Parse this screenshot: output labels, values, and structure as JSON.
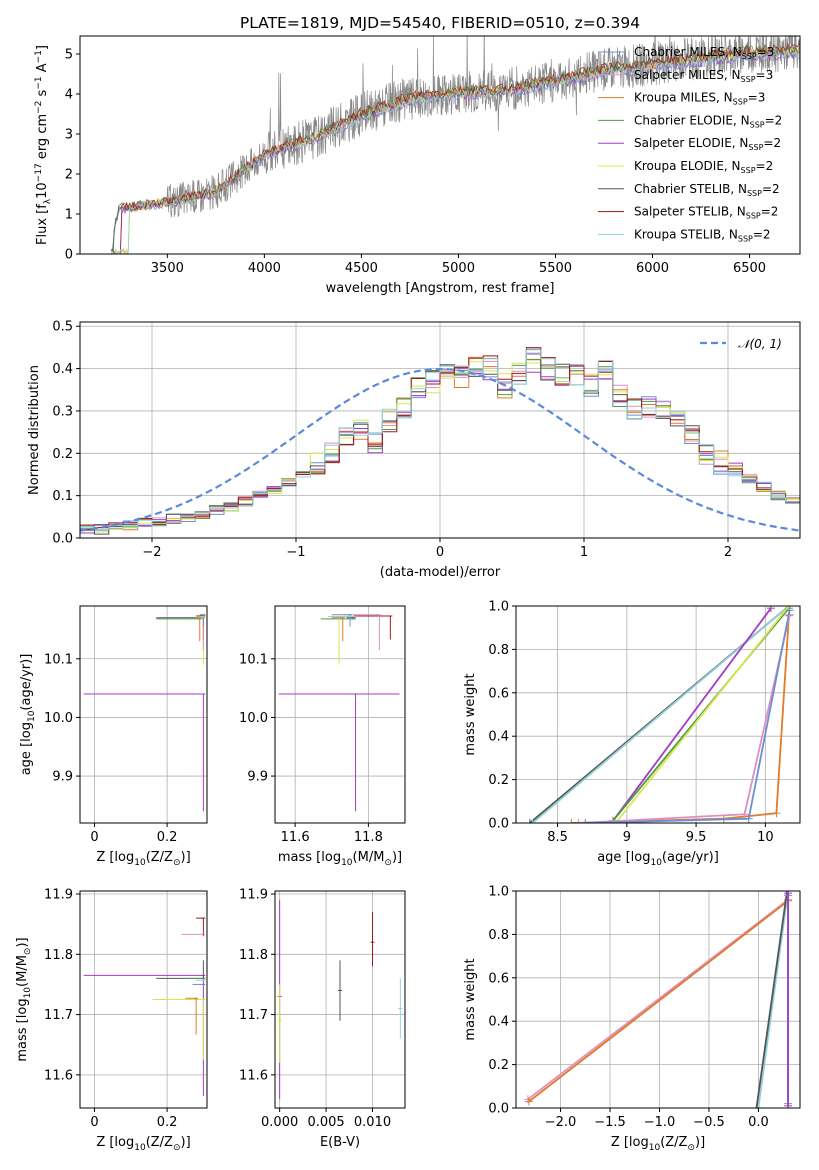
{
  "figure": {
    "title": "PLATE=1819, MJD=54540, FIBERID=0510, z=0.394"
  },
  "colors": {
    "Chabrier MILES": "#6a8fd6",
    "Salpeter MILES": "#e08fbf",
    "Kroupa MILES": "#e07b28",
    "Chabrier ELODIE": "#4f9a4f",
    "Salpeter ELODIE": "#a23cc2",
    "Kroupa ELODIE": "#d8e84a",
    "Chabrier STELIB": "#555555",
    "Salpeter STELIB": "#a01a1a",
    "Kroupa STELIB": "#8fd2d8",
    "data": "#888888",
    "normal": "#5b8bd8"
  },
  "chart_data": [
    {
      "id": "spectrum",
      "type": "line",
      "title": "PLATE=1819, MJD=54540, FIBERID=0510, z=0.394",
      "xlabel": "wavelength [Angstrom, rest frame]",
      "ylabel_parts": [
        "Flux [f",
        "λ",
        "10",
        "−17",
        " erg cm",
        "−2",
        " s",
        "−1",
        " A",
        "−1",
        "]"
      ],
      "xlim": [
        3050,
        6760
      ],
      "ylim": [
        0,
        5.45
      ],
      "xticks": [
        3500,
        4000,
        4500,
        5000,
        5500,
        6000,
        6500
      ],
      "yticks": [
        0,
        1,
        2,
        3,
        4,
        5
      ],
      "grid": false,
      "legend_position": "top-right",
      "legend": [
        {
          "name": "Chabrier MILES",
          "sub": "SSP",
          "n": "3"
        },
        {
          "name": "Salpeter MILES",
          "sub": "SSP",
          "n": "3"
        },
        {
          "name": "Kroupa MILES",
          "sub": "SSP",
          "n": "3"
        },
        {
          "name": "Chabrier ELODIE",
          "sub": "SSP",
          "n": "2"
        },
        {
          "name": "Salpeter ELODIE",
          "sub": "SSP",
          "n": "2"
        },
        {
          "name": "Kroupa ELODIE",
          "sub": "SSP",
          "n": "2"
        },
        {
          "name": "Chabrier STELIB",
          "sub": "SSP",
          "n": "2"
        },
        {
          "name": "Salpeter STELIB",
          "sub": "SSP",
          "n": "2"
        },
        {
          "name": "Kroupa STELIB",
          "sub": "SSP",
          "n": "2"
        }
      ],
      "continuum_x": [
        3200,
        3250,
        3500,
        3750,
        4000,
        4250,
        4500,
        4750,
        5000,
        5250,
        5500,
        5750,
        6000,
        6250,
        6500,
        6750
      ],
      "continuum_y": [
        0.0,
        1.15,
        1.3,
        1.55,
        2.5,
        2.9,
        3.5,
        3.9,
        4.05,
        4.1,
        4.35,
        4.6,
        4.75,
        4.9,
        5.05,
        5.1
      ]
    },
    {
      "id": "residuals",
      "type": "step",
      "xlabel": "(data-model)/error",
      "ylabel": "Normed distribution",
      "xlim": [
        -2.5,
        2.5
      ],
      "ylim": [
        0,
        0.51
      ],
      "xticks": [
        -2,
        -1,
        0,
        1,
        2
      ],
      "yticks": [
        0.0,
        0.1,
        0.2,
        0.3,
        0.4,
        0.5
      ],
      "grid": true,
      "legend": {
        "label": "𝒩(0, 1)",
        "position": "top-right"
      },
      "bin_width": 0.1,
      "bin_start": -2.5,
      "base_histogram": [
        0.02,
        0.02,
        0.025,
        0.03,
        0.035,
        0.04,
        0.045,
        0.05,
        0.055,
        0.065,
        0.075,
        0.085,
        0.1,
        0.115,
        0.13,
        0.15,
        0.175,
        0.2,
        0.24,
        0.25,
        0.22,
        0.28,
        0.31,
        0.35,
        0.37,
        0.39,
        0.38,
        0.41,
        0.4,
        0.36,
        0.39,
        0.42,
        0.4,
        0.39,
        0.38,
        0.36,
        0.4,
        0.34,
        0.3,
        0.31,
        0.3,
        0.27,
        0.25,
        0.2,
        0.18,
        0.16,
        0.14,
        0.12,
        0.1,
        0.09,
        0.08,
        0.07,
        0.05,
        0.045,
        0.04,
        0.035,
        0.03,
        0.03,
        0.025,
        0.02
      ]
    },
    {
      "id": "age-vs-Z",
      "type": "errorbar",
      "xlabel_parts": [
        "Z [log",
        "10",
        "(Z/Z",
        "⊙",
        ")]"
      ],
      "ylabel_parts": [
        "age  [log",
        "10",
        "(age/yr)]"
      ],
      "xlim": [
        -0.04,
        0.31
      ],
      "ylim": [
        9.82,
        10.19
      ],
      "xticks": [
        0.0,
        0.2
      ],
      "yticks": [
        9.9,
        10.0,
        10.1
      ],
      "grid": true,
      "points": [
        {
          "series": "Salpeter ELODIE",
          "x": 0.3,
          "xerr": [
            0.33,
            0.0
          ],
          "y": 10.04,
          "yerr": [
            0.2,
            0.0
          ]
        },
        {
          "series": "Chabrier STELIB",
          "x": 0.3,
          "xerr": [
            0.13,
            0.0
          ],
          "y": 10.17,
          "yerr": [
            0.0,
            0.0
          ]
        },
        {
          "series": "Chabrier ELODIE",
          "x": 0.29,
          "xerr": [
            0.12,
            0.0
          ],
          "y": 10.168,
          "yerr": [
            0.0,
            0.0
          ]
        },
        {
          "series": "Kroupa ELODIE",
          "x": 0.3,
          "xerr": [
            0.02,
            0.0
          ],
          "y": 10.17,
          "yerr": [
            0.08,
            0.0
          ]
        },
        {
          "series": "Salpeter STELIB",
          "x": 0.3,
          "xerr": [
            0.02,
            0.0
          ],
          "y": 10.173,
          "yerr": [
            0.04,
            0.0
          ]
        },
        {
          "series": "Kroupa MILES",
          "x": 0.29,
          "xerr": [
            0.01,
            0.0
          ],
          "y": 10.17,
          "yerr": [
            0.04,
            0.0
          ]
        },
        {
          "series": "Salpeter MILES",
          "x": 0.3,
          "xerr": [
            0.01,
            0.0
          ],
          "y": 10.175,
          "yerr": [
            0.06,
            0.0
          ]
        },
        {
          "series": "Chabrier MILES",
          "x": 0.3,
          "xerr": [
            0.01,
            0.0
          ],
          "y": 10.175,
          "yerr": [
            0.02,
            0.0
          ]
        },
        {
          "series": "Kroupa STELIB",
          "x": 0.3,
          "xerr": [
            0.01,
            0.0
          ],
          "y": 10.172,
          "yerr": [
            0.0,
            0.0
          ]
        }
      ]
    },
    {
      "id": "age-vs-mass",
      "type": "errorbar",
      "xlabel_parts": [
        "mass [log",
        "10",
        "(M/M",
        "⊙",
        ")]"
      ],
      "xlim": [
        11.545,
        11.9
      ],
      "ylim": [
        9.82,
        10.19
      ],
      "xticks": [
        11.6,
        11.8
      ],
      "yticks": [
        9.9,
        10.0,
        10.1
      ],
      "grid": true,
      "points": [
        {
          "series": "Salpeter ELODIE",
          "x": 11.765,
          "xerr": [
            0.21,
            0.12
          ],
          "y": 10.04,
          "yerr": [
            0.2,
            0.0
          ]
        },
        {
          "series": "Chabrier STELIB",
          "x": 11.76,
          "xerr": [
            0.02,
            0.0
          ],
          "y": 10.17,
          "yerr": [
            0.0,
            0.0
          ]
        },
        {
          "series": "Chabrier ELODIE",
          "x": 11.76,
          "xerr": [
            0.09,
            0.0
          ],
          "y": 10.168,
          "yerr": [
            0.0,
            0.0
          ]
        },
        {
          "series": "Kroupa ELODIE",
          "x": 11.72,
          "xerr": [
            0.0,
            0.0
          ],
          "y": 10.17,
          "yerr": [
            0.08,
            0.0
          ]
        },
        {
          "series": "Salpeter STELIB",
          "x": 11.86,
          "xerr": [
            0.1,
            0.0
          ],
          "y": 10.173,
          "yerr": [
            0.04,
            0.0
          ]
        },
        {
          "series": "Kroupa MILES",
          "x": 11.73,
          "xerr": [
            0.03,
            0.0
          ],
          "y": 10.17,
          "yerr": [
            0.04,
            0.0
          ]
        },
        {
          "series": "Salpeter MILES",
          "x": 11.83,
          "xerr": [
            0.1,
            0.0
          ],
          "y": 10.175,
          "yerr": [
            0.06,
            0.0
          ]
        },
        {
          "series": "Chabrier MILES",
          "x": 11.75,
          "xerr": [
            0.05,
            0.0
          ],
          "y": 10.175,
          "yerr": [
            0.02,
            0.0
          ]
        },
        {
          "series": "Kroupa STELIB",
          "x": 11.76,
          "xerr": [
            0.07,
            0.0
          ],
          "y": 10.172,
          "yerr": [
            0.0,
            0.0
          ]
        }
      ]
    },
    {
      "id": "massweight-vs-age",
      "type": "line",
      "xlabel_parts": [
        "age  [log",
        "10",
        "(age/yr)]"
      ],
      "ylabel": "mass weight",
      "xlim": [
        8.2,
        10.25
      ],
      "ylim": [
        0,
        1.0
      ],
      "xticks": [
        8.5,
        9.0,
        9.5,
        10.0
      ],
      "yticks": [
        0.0,
        0.2,
        0.4,
        0.6,
        0.8,
        1.0
      ],
      "grid": true,
      "lines": [
        {
          "series": "Chabrier STELIB",
          "x": [
            8.3,
            10.17
          ],
          "y": [
            0.0,
            1.0
          ]
        },
        {
          "series": "Kroupa STELIB",
          "x": [
            8.32,
            10.17
          ],
          "y": [
            0.0,
            1.0
          ]
        },
        {
          "series": "Salpeter ELODIE",
          "x": [
            8.9,
            10.04
          ],
          "y": [
            0.01,
            0.99
          ]
        },
        {
          "series": "Chabrier ELODIE",
          "x": [
            8.9,
            10.17
          ],
          "y": [
            0.01,
            0.99
          ]
        },
        {
          "series": "Kroupa ELODIE",
          "x": [
            8.92,
            10.17
          ],
          "y": [
            0.0,
            1.0
          ]
        },
        {
          "series": "Kroupa MILES",
          "x": [
            8.6,
            9.7,
            10.08,
            10.17
          ],
          "y": [
            0.0,
            0.02,
            0.045,
            0.955
          ]
        },
        {
          "series": "Salpeter MILES",
          "x": [
            8.65,
            9.85,
            10.175
          ],
          "y": [
            0.0,
            0.04,
            0.96
          ]
        },
        {
          "series": "Chabrier MILES",
          "x": [
            8.7,
            9.88,
            10.175
          ],
          "y": [
            0.0,
            0.02,
            0.98
          ]
        }
      ]
    },
    {
      "id": "mass-vs-Z",
      "type": "errorbar",
      "xlabel_parts": [
        "Z [log",
        "10",
        "(Z/Z",
        "⊙",
        ")]"
      ],
      "ylabel_parts": [
        "mass [log",
        "10",
        "(M/M",
        "⊙",
        ")]"
      ],
      "xlim": [
        -0.04,
        0.31
      ],
      "ylim": [
        11.545,
        11.905
      ],
      "xticks": [
        0.0,
        0.2
      ],
      "yticks": [
        11.6,
        11.7,
        11.8,
        11.9
      ],
      "grid": true,
      "points": [
        {
          "series": "Salpeter ELODIE",
          "x": 0.3,
          "xerr": [
            0.33,
            0.0
          ],
          "y": 11.765,
          "yerr": [
            0.2,
            0.0
          ]
        },
        {
          "series": "Chabrier STELIB",
          "x": 0.3,
          "xerr": [
            0.13,
            0.0
          ],
          "y": 11.76,
          "yerr": [
            0.0,
            0.03
          ]
        },
        {
          "series": "Chabrier ELODIE",
          "x": 0.3,
          "xerr": [
            0.05,
            0.0
          ],
          "y": 11.76,
          "yerr": [
            0.0,
            0.0
          ]
        },
        {
          "series": "Kroupa ELODIE",
          "x": 0.3,
          "xerr": [
            0.14,
            0.0
          ],
          "y": 11.725,
          "yerr": [
            0.1,
            0.0
          ]
        },
        {
          "series": "Salpeter STELIB",
          "x": 0.3,
          "xerr": [
            0.02,
            0.0
          ],
          "y": 11.86,
          "yerr": [
            0.03,
            0.0
          ]
        },
        {
          "series": "Kroupa MILES",
          "x": 0.28,
          "xerr": [
            0.03,
            0.0
          ],
          "y": 11.727,
          "yerr": [
            0.06,
            0.0
          ]
        },
        {
          "series": "Salpeter MILES",
          "x": 0.3,
          "xerr": [
            0.06,
            0.0
          ],
          "y": 11.833,
          "yerr": [
            0.0,
            0.0
          ]
        },
        {
          "series": "Chabrier MILES",
          "x": 0.3,
          "xerr": [
            0.03,
            0.0
          ],
          "y": 11.75,
          "yerr": [
            0.0,
            0.0
          ]
        },
        {
          "series": "Kroupa STELIB",
          "x": 0.3,
          "xerr": [
            0.02,
            0.0
          ],
          "y": 11.757,
          "yerr": [
            0.0,
            0.0
          ]
        }
      ]
    },
    {
      "id": "mass-vs-ebv",
      "type": "errorbar",
      "xlabel": "E(B-V)",
      "xlim": [
        -0.0005,
        0.0135
      ],
      "ylim": [
        11.545,
        11.905
      ],
      "xticks": [
        0.0,
        0.005,
        0.01
      ],
      "xticklabels": [
        "0.000",
        "0.005",
        "0.010"
      ],
      "yticks": [
        11.6,
        11.7,
        11.8,
        11.9
      ],
      "grid": true,
      "points": [
        {
          "series": "Salpeter ELODIE",
          "x": 0.0,
          "y": 11.73,
          "yerr": [
            0.17,
            0.16
          ]
        },
        {
          "series": "Kroupa ELODIE",
          "x": 0.0,
          "y": 11.69,
          "yerr": [
            0.07,
            0.06
          ]
        },
        {
          "series": "Chabrier STELIB",
          "x": 0.0065,
          "y": 11.74,
          "yerr": [
            0.05,
            0.05
          ]
        },
        {
          "series": "Salpeter STELIB",
          "x": 0.01,
          "y": 11.82,
          "yerr": [
            0.04,
            0.05
          ]
        },
        {
          "series": "Kroupa STELIB",
          "x": 0.013,
          "y": 11.71,
          "yerr": [
            0.05,
            0.05
          ]
        }
      ]
    },
    {
      "id": "massweight-vs-Z",
      "type": "line",
      "xlabel_parts": [
        "Z [log",
        "10",
        "(Z/Z",
        "⊙",
        ")]"
      ],
      "ylabel": "mass weight",
      "xlim": [
        -2.45,
        0.42
      ],
      "ylim": [
        0,
        1.0
      ],
      "xticks": [
        -2.0,
        -1.5,
        -1.0,
        -0.5,
        0.0
      ],
      "xticklabels": [
        "−2.0",
        "−1.5",
        "−1.0",
        "−0.5",
        "0.0"
      ],
      "yticks": [
        0.0,
        0.2,
        0.4,
        0.6,
        0.8,
        1.0
      ],
      "grid": true,
      "lines": [
        {
          "series": "Salpeter MILES",
          "x": [
            -2.33,
            0.3
          ],
          "y": [
            0.04,
            0.96
          ]
        },
        {
          "series": "Kroupa MILES",
          "x": [
            -2.32,
            0.3
          ],
          "y": [
            0.03,
            0.955
          ]
        },
        {
          "series": "Kroupa STELIB",
          "x": [
            0.0,
            0.3
          ],
          "y": [
            0.0,
            1.0
          ]
        },
        {
          "series": "Chabrier STELIB",
          "x": [
            -0.02,
            0.29
          ],
          "y": [
            0.0,
            1.0
          ]
        },
        {
          "series": "Kroupa ELODIE",
          "x": [
            0.3,
            0.3
          ],
          "y": [
            0.0,
            1.0
          ]
        },
        {
          "series": "Chabrier MILES",
          "x": [
            0.3,
            0.3
          ],
          "y": [
            0.02,
            0.98
          ]
        },
        {
          "series": "Salpeter ELODIE",
          "x": [
            0.3,
            0.3
          ],
          "y": [
            0.01,
            0.99
          ]
        }
      ]
    }
  ]
}
